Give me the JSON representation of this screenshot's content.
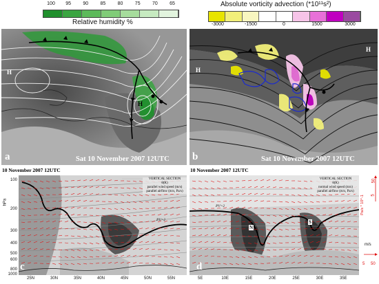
{
  "colorbars": {
    "rh": {
      "title": "Relative humidity %",
      "ticks": [
        "100",
        "95",
        "90",
        "85",
        "80",
        "75",
        "70",
        "65"
      ],
      "colors": [
        "#1f8f2c",
        "#3aa541",
        "#5cba5a",
        "#80cc78",
        "#a6dc9c",
        "#c6eac0",
        "#e2f4de"
      ]
    },
    "av": {
      "title": "Absolute vorticity advection (*10¹¹s²)",
      "ticks": [
        "-3000",
        "-1500",
        "0",
        "1500",
        "3000"
      ],
      "colors": [
        "#e8e400",
        "#f2ef7a",
        "#f8f6c0",
        "#ffffff",
        "#ffffff",
        "#f6c4e8",
        "#e870d8",
        "#c000c0",
        "#9a4aa0"
      ]
    }
  },
  "panels": {
    "a": {
      "label": "a",
      "time": ""
    },
    "b": {
      "label": "b",
      "time": "Sat 10 November 2007 12UTC"
    },
    "c": {
      "label": "c",
      "header": "10 November 2007 12UTC"
    },
    "d": {
      "label": "d",
      "header": "10 November 2007 12UTC"
    }
  },
  "pressure_marks": {
    "a_high": "H",
    "a_low": "H",
    "b_high": "H",
    "b_low": "H"
  },
  "panel_a_time": "Sat 10  November 2007 12UTC",
  "section_c": {
    "legend_title": "VERTICAL SECTION",
    "legend_lines": [
      "θ(K)",
      "parallel wind speed (m/s)",
      "parallel airflow (m/s, Pa/s)"
    ],
    "y_axis_label": "hPa",
    "y_ticks": [
      "100",
      "200",
      "300",
      "400",
      "500",
      "600",
      "800",
      "1000"
    ],
    "x_ticks": [
      "25N",
      "30N",
      "35N",
      "40N",
      "45N",
      "50N",
      "55N"
    ],
    "contour_label": "PV=2"
  },
  "section_d": {
    "legend_title": "VERTICAL SECTION",
    "legend_lines": [
      "θ(K)",
      "normal wind speed (m/s)",
      "parallel airflow (m/s, Pa/s)"
    ],
    "x_ticks": [
      "5E",
      "10E",
      "15E",
      "20E",
      "25E",
      "30E",
      "35E"
    ],
    "contour_label": "PV=2",
    "vortex_labels": [
      "N",
      "S"
    ],
    "right_axis_label": "Pa/s * 10^-1",
    "right_scale": [
      "50",
      "5"
    ],
    "ms_label": "m/s",
    "ms_scale": [
      "5",
      "50"
    ]
  }
}
